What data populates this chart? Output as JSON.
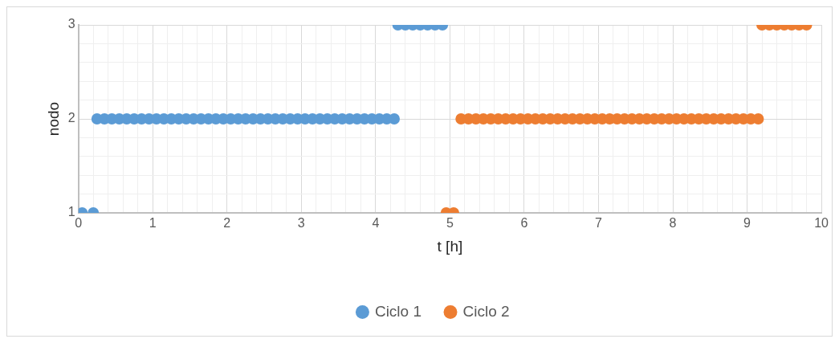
{
  "chart_data": {
    "type": "scatter",
    "xlabel": "t [h]",
    "ylabel": "nodo",
    "marker": "circle",
    "grid": true,
    "legend": "bottom",
    "xlim": [
      0,
      10
    ],
    "ylim": [
      1,
      3
    ],
    "xticks": [
      0,
      {
        "value": 0.2,
        "label": null
      },
      {
        "value": 0.4,
        "label": null
      },
      {
        "value": 0.6,
        "label": null
      },
      {
        "value": 0.8,
        "label": null
      },
      1,
      {
        "value": 1.2,
        "label": null
      },
      {
        "value": 1.4,
        "label": null
      },
      {
        "value": 1.6,
        "label": null
      },
      {
        "value": 1.8,
        "label": null
      },
      2,
      {
        "value": 2.2,
        "label": null
      },
      {
        "value": 2.4,
        "label": null
      },
      {
        "value": 2.6,
        "label": null
      },
      {
        "value": 2.8,
        "label": null
      },
      3,
      {
        "value": 3.2,
        "label": null
      },
      {
        "value": 3.4,
        "label": null
      },
      {
        "value": 3.6,
        "label": null
      },
      {
        "value": 3.8,
        "label": null
      },
      4,
      {
        "value": 4.2,
        "label": null
      },
      {
        "value": 4.4,
        "label": null
      },
      {
        "value": 4.6,
        "label": null
      },
      {
        "value": 4.8,
        "label": null
      },
      5,
      {
        "value": 5.2,
        "label": null
      },
      {
        "value": 5.4,
        "label": null
      },
      {
        "value": 5.6,
        "label": null
      },
      {
        "value": 5.8,
        "label": null
      },
      6,
      {
        "value": 6.2,
        "label": null
      },
      {
        "value": 6.4,
        "label": null
      },
      {
        "value": 6.6,
        "label": null
      },
      {
        "value": 6.8,
        "label": null
      },
      7,
      {
        "value": 7.2,
        "label": null
      },
      {
        "value": 7.4,
        "label": null
      },
      {
        "value": 7.6,
        "label": null
      },
      {
        "value": 7.8,
        "label": null
      },
      8,
      {
        "value": 8.2,
        "label": null
      },
      {
        "value": 8.4,
        "label": null
      },
      {
        "value": 8.6,
        "label": null
      },
      {
        "value": 8.8,
        "label": null
      },
      9,
      {
        "value": 9.2,
        "label": null
      },
      {
        "value": 9.4,
        "label": null
      },
      {
        "value": 9.6,
        "label": null
      },
      {
        "value": 9.8,
        "label": null
      },
      10
    ],
    "yticks": [
      1,
      {
        "value": 1.2,
        "label": null
      },
      {
        "value": 1.4,
        "label": null
      },
      {
        "value": 1.6,
        "label": null
      },
      {
        "value": 1.8,
        "label": null
      },
      2,
      {
        "value": 2.2,
        "label": null
      },
      {
        "value": 2.4,
        "label": null
      },
      {
        "value": 2.6,
        "label": null
      },
      {
        "value": 2.8,
        "label": null
      },
      3
    ],
    "series": [
      {
        "name": "Ciclo 1",
        "color": "#5b9bd5",
        "x": [
          0.05,
          0.2,
          0.25,
          0.35,
          0.45,
          0.55,
          0.65,
          0.75,
          0.85,
          0.95,
          1.05,
          1.15,
          1.25,
          1.35,
          1.45,
          1.55,
          1.65,
          1.75,
          1.85,
          1.95,
          2.05,
          2.15,
          2.25,
          2.35,
          2.45,
          2.55,
          2.65,
          2.75,
          2.85,
          2.95,
          3.05,
          3.15,
          3.25,
          3.35,
          3.45,
          3.55,
          3.65,
          3.75,
          3.85,
          3.95,
          4.05,
          4.15,
          4.25,
          4.3,
          4.4,
          4.5,
          4.6,
          4.7,
          4.8,
          4.9
        ],
        "values": [
          1,
          1,
          2,
          2,
          2,
          2,
          2,
          2,
          2,
          2,
          2,
          2,
          2,
          2,
          2,
          2,
          2,
          2,
          2,
          2,
          2,
          2,
          2,
          2,
          2,
          2,
          2,
          2,
          2,
          2,
          2,
          2,
          2,
          2,
          2,
          2,
          2,
          2,
          2,
          2,
          2,
          2,
          2,
          3,
          3,
          3,
          3,
          3,
          3,
          3
        ]
      },
      {
        "name": "Ciclo 2",
        "color": "#ed7d31",
        "x": [
          4.95,
          5.05,
          5.15,
          5.25,
          5.35,
          5.45,
          5.55,
          5.65,
          5.75,
          5.85,
          5.95,
          6.05,
          6.15,
          6.25,
          6.35,
          6.45,
          6.55,
          6.65,
          6.75,
          6.85,
          6.95,
          7.05,
          7.15,
          7.25,
          7.35,
          7.45,
          7.55,
          7.65,
          7.75,
          7.85,
          7.95,
          8.05,
          8.15,
          8.25,
          8.35,
          8.45,
          8.55,
          8.65,
          8.75,
          8.85,
          8.95,
          9.05,
          9.15,
          9.2,
          9.3,
          9.4,
          9.5,
          9.6,
          9.7,
          9.8
        ],
        "values": [
          1,
          1,
          2,
          2,
          2,
          2,
          2,
          2,
          2,
          2,
          2,
          2,
          2,
          2,
          2,
          2,
          2,
          2,
          2,
          2,
          2,
          2,
          2,
          2,
          2,
          2,
          2,
          2,
          2,
          2,
          2,
          2,
          2,
          2,
          2,
          2,
          2,
          2,
          2,
          2,
          2,
          2,
          2,
          3,
          3,
          3,
          3,
          3,
          3,
          3
        ]
      }
    ]
  }
}
